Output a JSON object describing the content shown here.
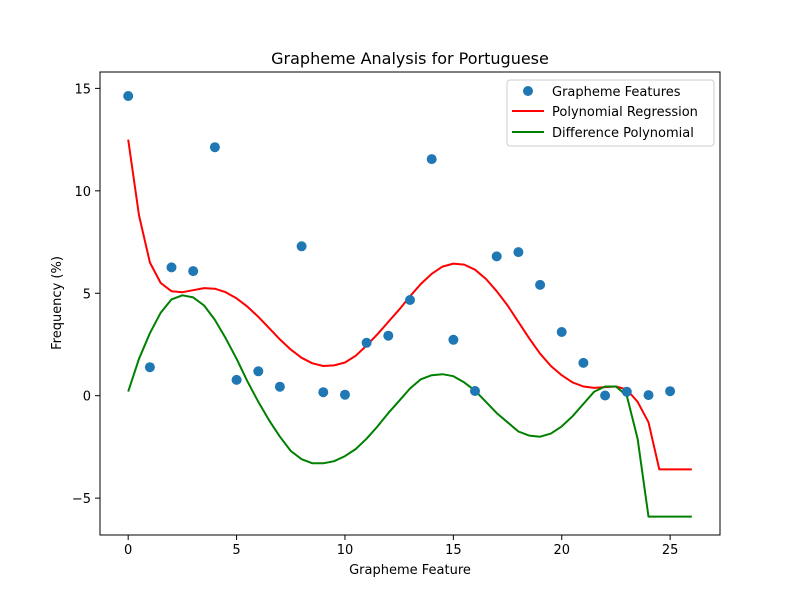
{
  "chart_data": {
    "type": "scatter",
    "title": "Grapheme Analysis for Portuguese",
    "xlabel": "Grapheme Feature",
    "ylabel": "Frequency (%)",
    "xlim": [
      -1.3,
      27.3
    ],
    "ylim": [
      -6.8,
      15.8
    ],
    "xticks": [
      0,
      5,
      10,
      15,
      20,
      25
    ],
    "yticks": [
      -5,
      0,
      5,
      10,
      15
    ],
    "ytick_labels": [
      "−5",
      "0",
      "5",
      "10",
      "15"
    ],
    "legend_position": "top-right",
    "grid": false,
    "colors": {
      "points": "#1f77b4",
      "regression": "#ff0000",
      "difference": "#008000"
    },
    "series": [
      {
        "name": "Grapheme Features",
        "kind": "scatter",
        "x": [
          0,
          1,
          2,
          3,
          4,
          5,
          6,
          7,
          8,
          9,
          10,
          11,
          12,
          13,
          14,
          15,
          16,
          17,
          18,
          19,
          20,
          21,
          22,
          23,
          24,
          25
        ],
        "y": [
          14.63,
          1.39,
          6.26,
          6.08,
          12.13,
          0.77,
          1.19,
          0.44,
          7.29,
          0.17,
          0.05,
          2.58,
          2.93,
          4.67,
          11.55,
          2.73,
          0.23,
          6.8,
          7.01,
          5.41,
          3.11,
          1.6,
          0.01,
          0.19,
          0.03,
          0.22
        ]
      },
      {
        "name": "Polynomial Regression",
        "kind": "line",
        "x": [
          0,
          0.5,
          1,
          1.5,
          2,
          2.5,
          3,
          3.5,
          4,
          4.5,
          5,
          5.5,
          6,
          6.5,
          7,
          7.5,
          8,
          8.5,
          9,
          9.5,
          10,
          10.5,
          11,
          11.5,
          12,
          12.5,
          13,
          13.5,
          14,
          14.5,
          15,
          15.5,
          16,
          16.5,
          17,
          17.5,
          18,
          18.5,
          19,
          19.5,
          20,
          20.5,
          21,
          21.5,
          22,
          22.5,
          23,
          23.5,
          24,
          24.5,
          25,
          25.5,
          26
        ],
        "y": [
          12.5,
          8.8,
          6.5,
          5.5,
          5.1,
          5.05,
          5.15,
          5.25,
          5.22,
          5.05,
          4.75,
          4.35,
          3.85,
          3.3,
          2.75,
          2.25,
          1.85,
          1.58,
          1.45,
          1.48,
          1.62,
          1.95,
          2.45,
          3.0,
          3.6,
          4.2,
          4.85,
          5.45,
          5.95,
          6.3,
          6.45,
          6.4,
          6.15,
          5.7,
          5.1,
          4.4,
          3.6,
          2.8,
          2.05,
          1.45,
          1.0,
          0.65,
          0.45,
          0.38,
          0.42,
          0.45,
          0.3,
          -0.3,
          -1.3,
          -3.6,
          -3.6,
          -3.6,
          -3.6
        ]
      },
      {
        "name": "Difference Polynomial",
        "kind": "line",
        "x": [
          0,
          0.5,
          1,
          1.5,
          2,
          2.5,
          3,
          3.5,
          4,
          4.5,
          5,
          5.5,
          6,
          6.5,
          7,
          7.5,
          8,
          8.5,
          9,
          9.5,
          10,
          10.5,
          11,
          11.5,
          12,
          12.5,
          13,
          13.5,
          14,
          14.5,
          15,
          15.5,
          16,
          16.5,
          17,
          17.5,
          18,
          18.5,
          19,
          19.5,
          20,
          20.5,
          21,
          21.5,
          22,
          22.5,
          23,
          23.5,
          24,
          24.5,
          25,
          25.5,
          26
        ],
        "y": [
          0.2,
          1.8,
          3.05,
          4.05,
          4.7,
          4.9,
          4.8,
          4.4,
          3.7,
          2.8,
          1.8,
          0.7,
          -0.3,
          -1.2,
          -2.0,
          -2.7,
          -3.1,
          -3.3,
          -3.3,
          -3.2,
          -2.95,
          -2.6,
          -2.1,
          -1.5,
          -0.85,
          -0.25,
          0.35,
          0.8,
          1.0,
          1.05,
          0.95,
          0.65,
          0.25,
          -0.3,
          -0.85,
          -1.3,
          -1.75,
          -1.95,
          -2.0,
          -1.85,
          -1.5,
          -1.0,
          -0.4,
          0.2,
          0.45,
          0.45,
          0.0,
          -2.1,
          -5.9,
          -5.9,
          -5.9,
          -5.9,
          -5.9
        ]
      }
    ]
  }
}
